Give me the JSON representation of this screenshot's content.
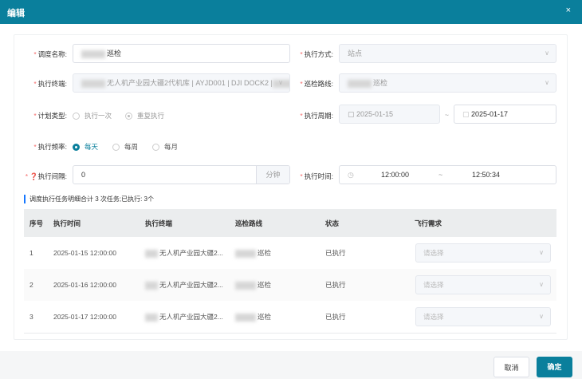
{
  "dialog": {
    "title": "编辑",
    "close": "×"
  },
  "form": {
    "schedule_name": {
      "label": "调度名称:",
      "value": "巡检"
    },
    "exec_mode": {
      "label": "执行方式:",
      "value": "站点"
    },
    "terminal": {
      "label": "执行终端:",
      "value": "无人机产业园大疆2代机库 | AYJD001 | DJI DOCK2 |",
      "suffix": "E."
    },
    "route": {
      "label": "巡检路线:",
      "value": "巡检"
    },
    "plan_type": {
      "label": "计划类型:",
      "options": [
        "执行一次",
        "重复执行"
      ],
      "selected": "重复执行"
    },
    "period": {
      "label": "执行周期:",
      "start": "2025-01-15",
      "sep": "~",
      "end": "2025-01-17"
    },
    "frequency": {
      "label": "执行频率:",
      "options": [
        "每天",
        "每周",
        "每月"
      ],
      "selected": "每天"
    },
    "interval": {
      "label": "执行间隔:",
      "value": "0",
      "unit": "分钟"
    },
    "exec_time": {
      "label": "执行时间:",
      "start": "12:00:00",
      "sep": "~",
      "end": "12:50:34"
    }
  },
  "section_title": "调度执行任务明细合计 3 次任务;已执行: 3个",
  "table": {
    "headers": [
      "序号",
      "执行时间",
      "执行终端",
      "巡检路线",
      "状态",
      "飞行需求"
    ],
    "rows": [
      {
        "no": "1",
        "time": "2025-01-15 12:00:00",
        "terminal": "无人机产业园大疆2...",
        "route": "巡检",
        "status": "已执行",
        "demand": "请选择"
      },
      {
        "no": "2",
        "time": "2025-01-16 12:00:00",
        "terminal": "无人机产业园大疆2...",
        "route": "巡检",
        "status": "已执行",
        "demand": "请选择"
      },
      {
        "no": "3",
        "time": "2025-01-17 12:00:00",
        "terminal": "无人机产业园大疆2...",
        "route": "巡检",
        "status": "已执行",
        "demand": "请选择"
      }
    ]
  },
  "footer": {
    "cancel": "取消",
    "ok": "确定"
  },
  "colors": {
    "primary": "#0a7f9c",
    "required": "#f56c6c",
    "section_bar": "#1677ff"
  }
}
